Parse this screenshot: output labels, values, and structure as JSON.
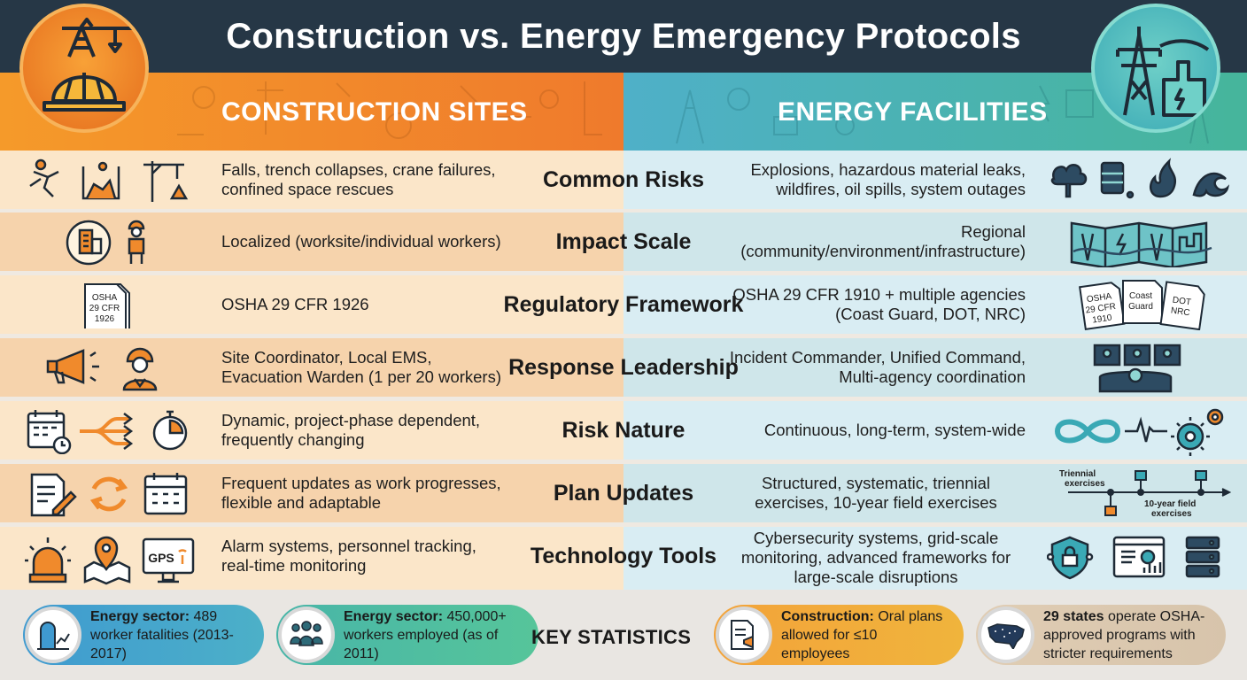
{
  "title": "Construction vs. Energy Emergency Protocols",
  "columns": {
    "left": "CONSTRUCTION SITES",
    "right": "ENERGY FACILITIES"
  },
  "colors": {
    "title_bar": "#263746",
    "construction_accent": "#f0862a",
    "energy_accent": "#46b3b6",
    "construction_row_light": "#fbe6c9",
    "construction_row_dark": "#f6d3ac",
    "energy_row_light": "#d9edf3",
    "energy_row_dark": "#cfe6ea",
    "icon_dark": "#233242"
  },
  "rows": [
    {
      "category": "Common Risks",
      "construction": "Falls, trench collapses, crane failures, confined space rescues",
      "energy": "Explosions, hazardous material leaks, wildfires, oil spills, system outages",
      "construction_icons": [
        "falling-person-icon",
        "trench-collapse-icon",
        "crane-warning-icon"
      ],
      "energy_icons": [
        "explosion-icon",
        "oil-barrel-icon",
        "fire-icon",
        "wave-icon"
      ]
    },
    {
      "category": "Impact Scale",
      "construction": "Localized (worksite/individual workers)",
      "energy": "Regional (community/environment/infrastructure)",
      "construction_icons": [
        "building-icon",
        "worker-icon"
      ],
      "energy_icons": [
        "regional-map-icon"
      ]
    },
    {
      "category": "Regulatory Framework",
      "construction": "OSHA 29 CFR 1926",
      "energy": "OSHA 29 CFR 1910 + multiple agencies (Coast Guard, DOT, NRC)",
      "construction_doc": "OSHA 29 CFR 1926",
      "energy_docs": [
        "OSHA 29 CFR 1910",
        "Coast Guard",
        "DOT NRC"
      ]
    },
    {
      "category": "Response Leadership",
      "construction": "Site Coordinator, Local EMS, Evacuation Warden (1 per 20 workers)",
      "energy": "Incident Commander, Unified Command, Multi-agency coordination",
      "construction_icons": [
        "megaphone-icon",
        "coordinator-icon"
      ],
      "energy_icons": [
        "command-center-icon"
      ]
    },
    {
      "category": "Risk Nature",
      "construction": "Dynamic, project-phase dependent, frequently changing",
      "energy": "Continuous, long-term, system-wide",
      "construction_icons": [
        "calendar-clock-icon",
        "branching-arrows-icon",
        "stopwatch-icon"
      ],
      "energy_icons": [
        "infinity-icon",
        "pulse-icon",
        "gear-icon"
      ]
    },
    {
      "category": "Plan Updates",
      "construction": "Frequent updates as work progresses, flexible and adaptable",
      "energy": "Structured, systematic, triennial exercises, 10-year field exercises",
      "construction_icons": [
        "document-edit-icon",
        "refresh-icon",
        "calendar-icon"
      ],
      "timeline": {
        "top": "Triennial exercises",
        "bottom": "10-year field exercises"
      }
    },
    {
      "category": "Technology Tools",
      "construction": "Alarm systems, personnel tracking, real-time monitoring",
      "energy": "Cybersecurity systems, grid-scale monitoring, advanced frameworks for large-scale disruptions",
      "construction_icons": [
        "alarm-light-icon",
        "location-map-icon",
        "gps-monitor-icon"
      ],
      "gps_label": "GPS",
      "energy_icons": [
        "shield-lock-icon",
        "dashboard-icon",
        "server-icon"
      ]
    }
  ],
  "stats": {
    "heading": "KEY STATISTICS",
    "items": [
      {
        "bold": "Energy sector:",
        "text": "489 worker fatalities (2013-2017)",
        "icon": "grave-chart-icon"
      },
      {
        "bold": "Energy sector:",
        "text": "450,000+ workers employed (as of 2011)",
        "icon": "workers-group-icon"
      },
      {
        "bold": "Construction:",
        "text": "Oral plans allowed for ≤10 employees",
        "icon": "plan-megaphone-icon"
      },
      {
        "bold": "29 states",
        "text": "operate OSHA-approved programs with stricter requirements",
        "icon": "usa-map-icon"
      }
    ]
  }
}
